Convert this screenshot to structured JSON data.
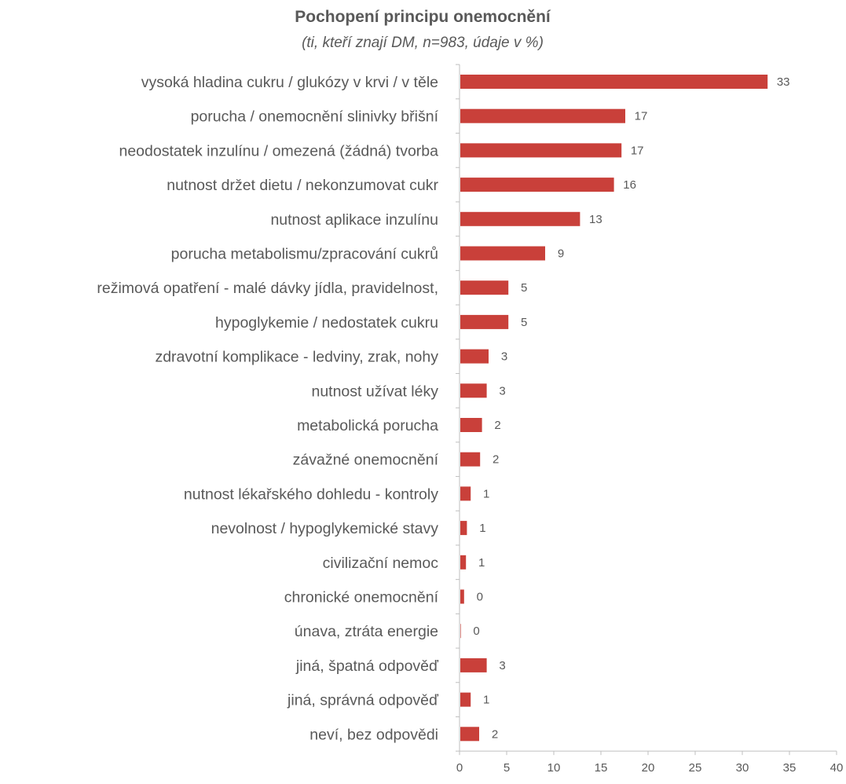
{
  "chart_data": {
    "type": "bar",
    "orientation": "horizontal",
    "title": "Pochopení principu onemocnění",
    "subtitle": "(ti, kteří znají DM, n=983, údaje v %)",
    "categories": [
      "vysoká hladina cukru / glukózy v krvi / v těle",
      "porucha / onemocnění slinivky břišní",
      "neodostatek inzulínu / omezená (žádná) tvorba",
      "nutnost držet dietu / nekonzumovat cukr",
      "nutnost aplikace inzulínu",
      "porucha metabolismu/zpracování cukrů",
      "režimová opatření - malé dávky jídla, pravidelnost,",
      "hypoglykemie / nedostatek cukru",
      "zdravotní komplikace - ledviny, zrak, nohy",
      "nutnost užívat léky",
      "metabolická porucha",
      "závažné onemocnění",
      "nutnost lékařského dohledu - kontroly",
      "nevolnost / hypoglykemické stavy",
      "civilizační nemoc",
      "chronické onemocnění",
      "únava, ztráta energie",
      "jiná, špatná odpověď",
      "jiná, správná odpověď",
      "neví, bez odpovědi"
    ],
    "values": [
      32.6,
      17.5,
      17.1,
      16.3,
      12.7,
      9.0,
      5.1,
      5.1,
      3.0,
      2.8,
      2.3,
      2.1,
      1.1,
      0.7,
      0.6,
      0.4,
      0.05,
      2.8,
      1.1,
      2.0
    ],
    "value_labels": [
      "33",
      "17",
      "17",
      "16",
      "13",
      "9",
      "5",
      "5",
      "3",
      "3",
      "2",
      "2",
      "1",
      "1",
      "1",
      "0",
      "0",
      "3",
      "1",
      "2"
    ],
    "xlim": [
      0,
      40
    ],
    "xticks": [
      "0",
      "5",
      "10",
      "15",
      "20",
      "25",
      "30",
      "35",
      "40"
    ],
    "bar_color": "#c9403a",
    "grid": false,
    "legend": "none"
  }
}
